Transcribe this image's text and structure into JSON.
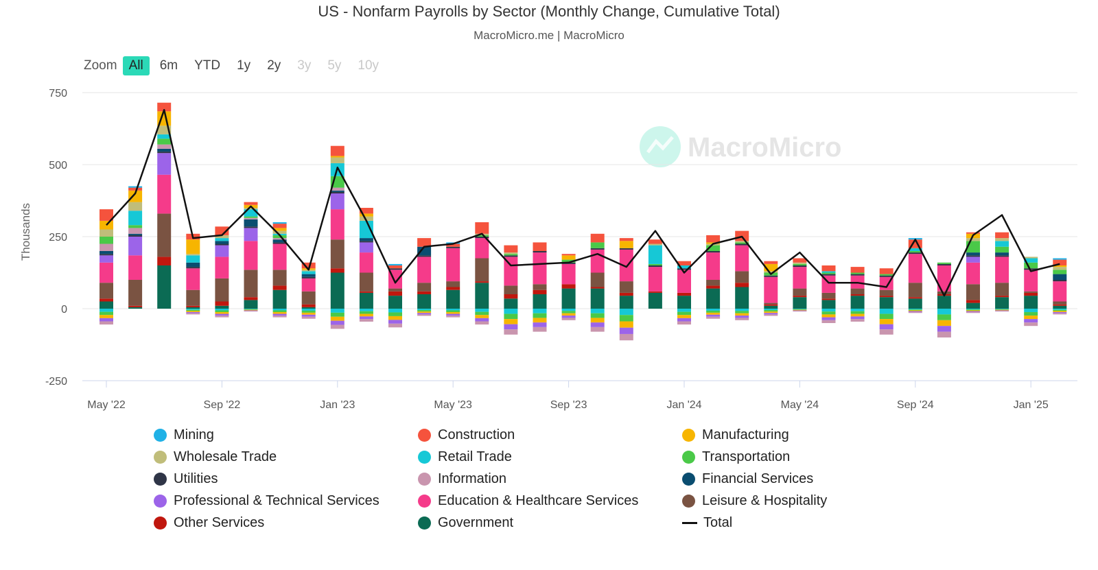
{
  "header": {
    "title": "US - Nonfarm Payrolls by Sector (Monthly Change, Cumulative Total)",
    "subtitle": "MacroMicro.me | MacroMicro"
  },
  "zoom": {
    "label": "Zoom",
    "buttons": [
      {
        "label": "All",
        "state": "active"
      },
      {
        "label": "6m",
        "state": "normal"
      },
      {
        "label": "YTD",
        "state": "normal"
      },
      {
        "label": "1y",
        "state": "normal"
      },
      {
        "label": "2y",
        "state": "normal"
      },
      {
        "label": "3y",
        "state": "disabled"
      },
      {
        "label": "5y",
        "state": "disabled"
      },
      {
        "label": "10y",
        "state": "disabled"
      }
    ]
  },
  "watermark": "MacroMicro",
  "colors": {
    "zoom_active": "#2bd9b7",
    "grid": "#e6e6e6",
    "total_line": "#111111"
  },
  "chart_data": {
    "type": "bar",
    "stacked": true,
    "title": "US - Nonfarm Payrolls by Sector (Monthly Change, Cumulative Total)",
    "subtitle": "MacroMicro.me | MacroMicro",
    "ylabel": "Thousands",
    "ylim": [
      -250,
      750
    ],
    "yticks": [
      -250,
      0,
      250,
      500,
      750
    ],
    "grid": true,
    "legend_position": "bottom",
    "x_tick_labels": [
      {
        "label": "May '22",
        "index": 0
      },
      {
        "label": "Sep '22",
        "index": 4
      },
      {
        "label": "Jan '23",
        "index": 8
      },
      {
        "label": "May '23",
        "index": 12
      },
      {
        "label": "Sep '23",
        "index": 16
      },
      {
        "label": "Jan '24",
        "index": 20
      },
      {
        "label": "May '24",
        "index": 24
      },
      {
        "label": "Sep '24",
        "index": 28
      },
      {
        "label": "Jan '25",
        "index": 32
      }
    ],
    "months": [
      "May '22",
      "Jun '22",
      "Jul '22",
      "Aug '22",
      "Sep '22",
      "Oct '22",
      "Nov '22",
      "Dec '22",
      "Jan '23",
      "Feb '23",
      "Mar '23",
      "Apr '23",
      "May '23",
      "Jun '23",
      "Jul '23",
      "Aug '23",
      "Sep '23",
      "Oct '23",
      "Nov '23",
      "Dec '23",
      "Jan '24",
      "Feb '24",
      "Mar '24",
      "Apr '24",
      "May '24",
      "Jun '24",
      "Jul '24",
      "Aug '24",
      "Sep '24",
      "Oct '24",
      "Nov '24",
      "Dec '24",
      "Jan '25",
      "Feb '25"
    ],
    "series": [
      {
        "name": "Government",
        "color": "#0b6b54",
        "values": [
          25,
          5,
          150,
          5,
          10,
          30,
          65,
          5,
          125,
          55,
          45,
          50,
          65,
          90,
          35,
          50,
          70,
          70,
          45,
          55,
          45,
          70,
          75,
          10,
          40,
          30,
          45,
          40,
          35,
          45,
          20,
          40,
          45,
          10
        ]
      },
      {
        "name": "Other Services",
        "color": "#c0170e",
        "values": [
          10,
          5,
          30,
          5,
          15,
          10,
          15,
          10,
          15,
          5,
          15,
          10,
          10,
          5,
          15,
          15,
          15,
          5,
          10,
          5,
          10,
          10,
          15,
          5,
          5,
          5,
          5,
          5,
          5,
          5,
          10,
          5,
          10,
          5
        ]
      },
      {
        "name": "Leisure & Hospitality",
        "color": "#7a5342",
        "values": [
          55,
          90,
          150,
          55,
          80,
          95,
          55,
          45,
          100,
          65,
          10,
          30,
          20,
          80,
          30,
          20,
          0,
          50,
          40,
          0,
          0,
          20,
          40,
          5,
          25,
          20,
          20,
          20,
          50,
          10,
          55,
          45,
          5,
          10
        ]
      },
      {
        "name": "Education & Healthcare Services",
        "color": "#f53b8a",
        "values": [
          70,
          85,
          135,
          75,
          75,
          100,
          90,
          45,
          105,
          70,
          65,
          90,
          115,
          70,
          100,
          110,
          70,
          80,
          110,
          85,
          80,
          95,
          90,
          90,
          75,
          60,
          45,
          45,
          100,
          90,
          75,
          90,
          75,
          70
        ]
      },
      {
        "name": "Professional & Technical Services",
        "color": "#9c64e9",
        "values": [
          25,
          65,
          75,
          0,
          40,
          45,
          0,
          0,
          55,
          35,
          0,
          0,
          0,
          0,
          0,
          0,
          0,
          0,
          0,
          0,
          0,
          0,
          0,
          0,
          0,
          0,
          0,
          0,
          0,
          0,
          20,
          0,
          0,
          0
        ]
      },
      {
        "name": "Utilities",
        "color": "#2f3547",
        "values": [
          5,
          5,
          5,
          5,
          5,
          5,
          5,
          5,
          5,
          5,
          5,
          5,
          5,
          5,
          5,
          5,
          5,
          5,
          5,
          5,
          5,
          5,
          5,
          5,
          5,
          5,
          5,
          5,
          5,
          5,
          5,
          5,
          5,
          5
        ]
      },
      {
        "name": "Financial Services",
        "color": "#0a4d70",
        "values": [
          10,
          5,
          10,
          15,
          10,
          25,
          10,
          10,
          5,
          10,
          0,
          30,
          0,
          0,
          0,
          0,
          0,
          0,
          0,
          0,
          0,
          0,
          0,
          0,
          0,
          0,
          0,
          0,
          0,
          0,
          10,
          10,
          0,
          20
        ]
      },
      {
        "name": "Information",
        "color": "#c995ae",
        "values": [
          25,
          20,
          15,
          0,
          0,
          5,
          5,
          0,
          10,
          0,
          0,
          0,
          0,
          0,
          0,
          0,
          0,
          0,
          0,
          0,
          0,
          0,
          0,
          0,
          0,
          0,
          0,
          0,
          0,
          0,
          0,
          0,
          0,
          0
        ]
      },
      {
        "name": "Transportation",
        "color": "#4ac948",
        "values": [
          25,
          10,
          20,
          0,
          0,
          5,
          10,
          0,
          40,
          0,
          0,
          0,
          0,
          5,
          5,
          0,
          10,
          20,
          0,
          5,
          0,
          20,
          5,
          10,
          5,
          5,
          5,
          5,
          5,
          5,
          40,
          20,
          20,
          15
        ]
      },
      {
        "name": "Retail Trade",
        "color": "#16c8d6",
        "values": [
          0,
          50,
          15,
          25,
          10,
          25,
          5,
          10,
          45,
          60,
          0,
          0,
          0,
          0,
          0,
          0,
          0,
          0,
          0,
          65,
          10,
          0,
          0,
          0,
          0,
          5,
          0,
          0,
          10,
          0,
          0,
          20,
          15,
          0
        ]
      },
      {
        "name": "Wholesale Trade",
        "color": "#c0bd7a",
        "values": [
          25,
          30,
          30,
          5,
          10,
          5,
          10,
          5,
          20,
          15,
          0,
          0,
          0,
          5,
          5,
          0,
          0,
          0,
          0,
          5,
          0,
          5,
          5,
          5,
          5,
          0,
          0,
          0,
          0,
          0,
          10,
          10,
          5,
          10
        ]
      },
      {
        "name": "Manufacturing",
        "color": "#f7b500",
        "values": [
          30,
          40,
          50,
          50,
          0,
          10,
          10,
          5,
          5,
          10,
          0,
          0,
          0,
          0,
          0,
          0,
          15,
          0,
          25,
          0,
          0,
          5,
          0,
          25,
          0,
          0,
          0,
          0,
          0,
          0,
          15,
          0,
          0,
          5
        ]
      },
      {
        "name": "Construction",
        "color": "#f5533d",
        "values": [
          40,
          10,
          30,
          20,
          30,
          10,
          15,
          20,
          35,
          20,
          10,
          30,
          10,
          40,
          25,
          30,
          5,
          30,
          10,
          15,
          15,
          25,
          35,
          10,
          15,
          20,
          20,
          20,
          30,
          0,
          5,
          20,
          0,
          20
        ]
      },
      {
        "name": "Mining",
        "color": "#20b1e6",
        "values": [
          0,
          5,
          0,
          0,
          0,
          0,
          5,
          0,
          0,
          0,
          5,
          0,
          5,
          0,
          0,
          0,
          0,
          0,
          0,
          0,
          0,
          0,
          0,
          0,
          0,
          0,
          0,
          0,
          5,
          0,
          0,
          0,
          0,
          5
        ]
      },
      {
        "name": "Negative components",
        "color": "#16c8d6",
        "legend": false,
        "values": [
          -55,
          0,
          0,
          -20,
          -30,
          -10,
          -30,
          -35,
          -70,
          -45,
          -65,
          -25,
          -30,
          -55,
          -90,
          -80,
          -40,
          -80,
          -110,
          0,
          -55,
          -35,
          -40,
          -25,
          -10,
          -50,
          -45,
          -90,
          -15,
          -100,
          -15,
          -10,
          -60,
          -20
        ],
        "stack_colors": [
          "#16c8d6",
          "#4ac948",
          "#f7b500",
          "#9c64e9",
          "#c995ae"
        ]
      },
      {
        "name": "Total",
        "type": "line",
        "color": "#111111",
        "values": [
          290,
          400,
          690,
          245,
          255,
          355,
          255,
          135,
          490,
          305,
          90,
          215,
          225,
          260,
          150,
          155,
          160,
          190,
          145,
          270,
          125,
          225,
          250,
          120,
          195,
          90,
          90,
          75,
          240,
          45,
          255,
          325,
          130,
          155
        ]
      }
    ]
  },
  "legend": [
    {
      "label": "Mining",
      "color": "#20b1e6",
      "kind": "dot"
    },
    {
      "label": "Construction",
      "color": "#f5533d",
      "kind": "dot"
    },
    {
      "label": "Manufacturing",
      "color": "#f7b500",
      "kind": "dot"
    },
    {
      "label": "Wholesale Trade",
      "color": "#c0bd7a",
      "kind": "dot"
    },
    {
      "label": "Retail Trade",
      "color": "#16c8d6",
      "kind": "dot"
    },
    {
      "label": "Transportation",
      "color": "#4ac948",
      "kind": "dot"
    },
    {
      "label": "Utilities",
      "color": "#2f3547",
      "kind": "dot"
    },
    {
      "label": "Information",
      "color": "#c995ae",
      "kind": "dot"
    },
    {
      "label": "Financial Services",
      "color": "#0a4d70",
      "kind": "dot"
    },
    {
      "label": "Professional & Technical Services",
      "color": "#9c64e9",
      "kind": "dot"
    },
    {
      "label": "Education & Healthcare Services",
      "color": "#f53b8a",
      "kind": "dot"
    },
    {
      "label": "Leisure & Hospitality",
      "color": "#7a5342",
      "kind": "dot"
    },
    {
      "label": "Other Services",
      "color": "#c0170e",
      "kind": "dot"
    },
    {
      "label": "Government",
      "color": "#0b6b54",
      "kind": "dot"
    },
    {
      "label": "Total",
      "color": "#111111",
      "kind": "line"
    }
  ]
}
